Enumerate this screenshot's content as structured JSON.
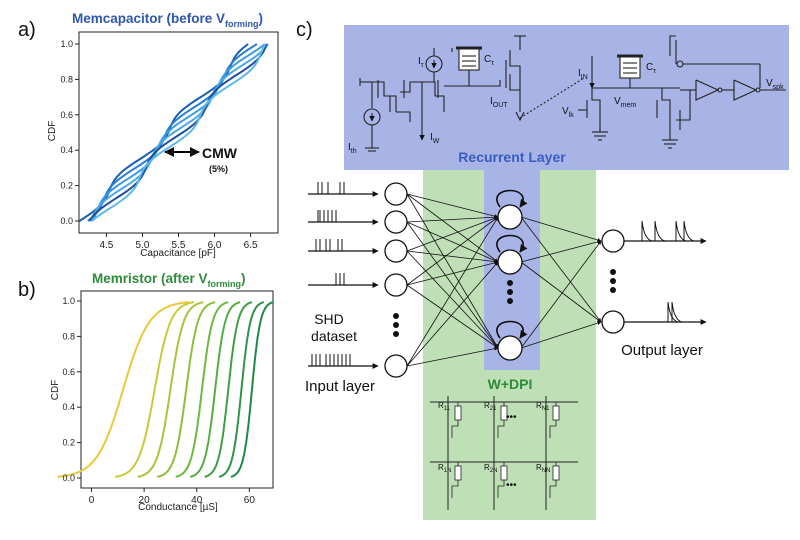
{
  "panel_labels": {
    "a": "a)",
    "b": "b)",
    "c": "c)"
  },
  "panel_a": {
    "title_main": "Memcapacitor (before V",
    "title_sub": "forming",
    "title_end": ")",
    "title_color": "#2f57b0",
    "xlabel": "Capacitance [pF]",
    "ylabel": "CDF",
    "xticks": [
      "4.5",
      "5.0",
      "5.5",
      "6.0",
      "6.5"
    ],
    "yticks": [
      "0.0",
      "0.2",
      "0.4",
      "0.6",
      "0.8",
      "1.0"
    ],
    "annotation": "CMW",
    "annotation_sub": "(5%)"
  },
  "panel_b": {
    "title_main": "Memristor (after V",
    "title_sub": "forming",
    "title_end": ")",
    "title_color": "#2e8b3a",
    "xlabel": "Conductance [µS]",
    "ylabel": "CDF",
    "xticks": [
      "0",
      "20",
      "40",
      "60"
    ],
    "yticks": [
      "0.0",
      "0.2",
      "0.4",
      "0.6",
      "0.8",
      "1.0"
    ]
  },
  "panel_c": {
    "recurrent_label": "Recurrent Layer",
    "recurrent_color": "#3a5bbf",
    "wdpi_label": "W+DPI",
    "wdpi_color": "#2e8b3a",
    "dataset_line1": "SHD",
    "dataset_line2": "dataset",
    "input_label": "Input layer",
    "output_label": "Output layer",
    "circuit": {
      "i_tau": "I",
      "i_tau_sub": "τ",
      "c_tau": "C",
      "c_tau_sub": "τ",
      "i_th": "I",
      "i_th_sub": "th",
      "i_w": "I",
      "i_w_sub": "W",
      "i_out": "I",
      "i_out_sub": "OUT",
      "i_in": "I",
      "i_in_sub": "IN",
      "v_lk": "V",
      "v_lk_sub": "lk",
      "v_mem": "V",
      "v_mem_sub": "mem",
      "c_tau2": "C",
      "c_tau2_sub": "τ",
      "v_spk": "V",
      "v_spk_sub": "spk"
    },
    "crossbar": {
      "r11": "R",
      "r11_sub": "11",
      "r21": "R",
      "r21_sub": "21",
      "rn1": "R",
      "rn1_sub": "N1",
      "r1n": "R",
      "r1n_sub": "1N",
      "r2n": "R",
      "r2n_sub": "2N",
      "rnn": "R",
      "rnn_sub": "NN",
      "ellipsis": "•••"
    }
  }
}
